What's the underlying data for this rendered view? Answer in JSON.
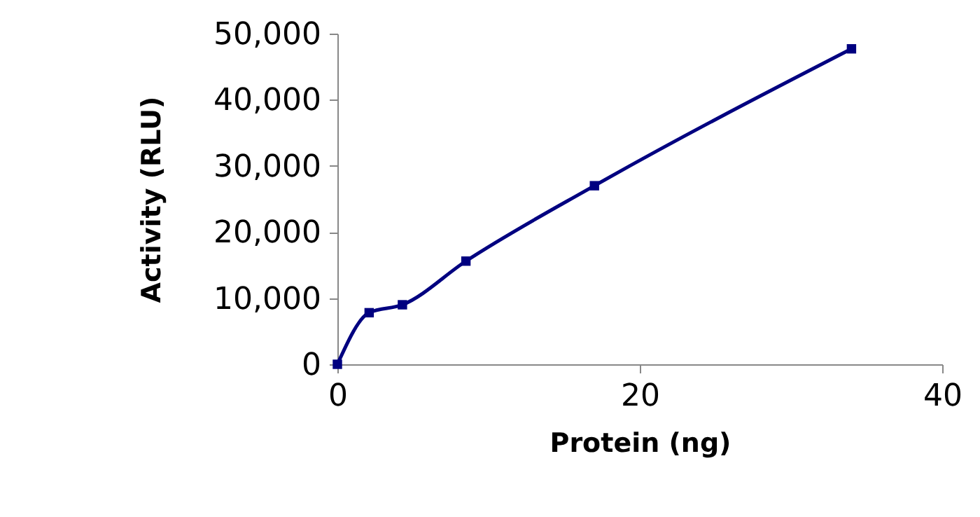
{
  "chart_data": {
    "type": "line",
    "xlabel": "Protein (ng)",
    "ylabel": "Activity (RLU)",
    "x": [
      0,
      2.1,
      4.3,
      8.5,
      17,
      34
    ],
    "series": [
      {
        "color": "#000080",
        "values": [
          0,
          7800,
          9000,
          15600,
          27000,
          47700
        ]
      }
    ],
    "xlim": [
      0,
      40
    ],
    "xticks": [
      0,
      20,
      40
    ],
    "ylim": [
      0,
      50000
    ],
    "yticks": [
      0,
      {
        "value": 10000,
        "label": "10,000"
      },
      {
        "value": 20000,
        "label": "20,000"
      },
      {
        "value": 30000,
        "label": "30,000"
      },
      {
        "value": 40000,
        "label": "40,000"
      },
      {
        "value": 50000,
        "label": "50,000"
      }
    ],
    "grid": false,
    "marker": "square",
    "line_style": "solid"
  }
}
